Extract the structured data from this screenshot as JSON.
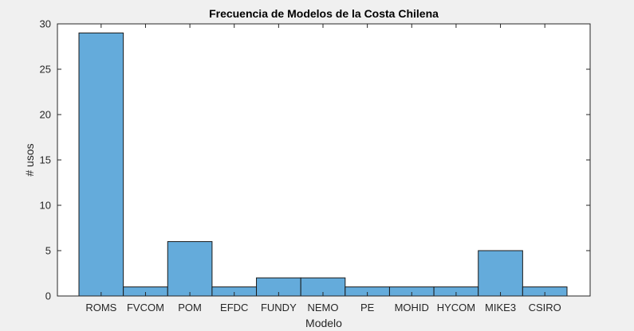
{
  "chart_data": {
    "type": "bar",
    "title": "Frecuencia de Modelos de la Costa Chilena",
    "xlabel": "Modelo",
    "ylabel": "# usos",
    "categories": [
      "ROMS",
      "FVCOM",
      "POM",
      "EFDC",
      "FUNDY",
      "NEMO",
      "PE",
      "MOHID",
      "HYCOM",
      "MIKE3",
      "CSIRO"
    ],
    "values": [
      29,
      1,
      6,
      1,
      2,
      2,
      1,
      1,
      1,
      5,
      1
    ],
    "ylim": [
      0,
      30
    ],
    "yticks": [
      0,
      5,
      10,
      15,
      20,
      25,
      30
    ],
    "ytick_labels": [
      "0",
      "5",
      "10",
      "15",
      "20",
      "25",
      "30"
    ],
    "grid": false,
    "bar_color": "#64abdb",
    "bar_edge_color": "#1a1a1a",
    "axes_background": "#ffffff",
    "figure_background": "#f0f0f0"
  }
}
